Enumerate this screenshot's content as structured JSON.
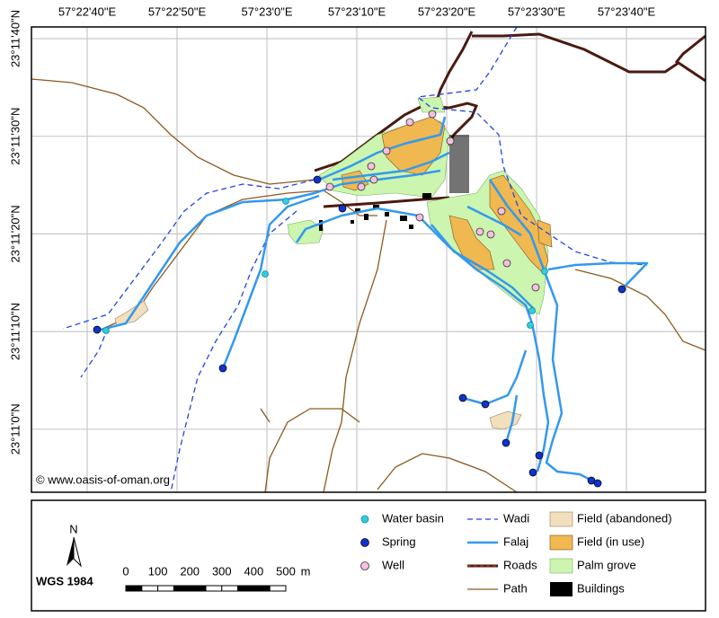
{
  "map": {
    "x_labels": [
      "57°22'40\"E",
      "57°22'50\"E",
      "57°23'0\"E",
      "57°23'10\"E",
      "57°23'20\"E",
      "57°23'30\"E",
      "57°23'40\"E"
    ],
    "y_labels": [
      "23°11'40\"N",
      "23°11'30\"N",
      "23°11'20\"N",
      "23°11'10\"N",
      "23°11'0\"N"
    ],
    "credit": "© www.oasis-of-oman.org",
    "north": "N",
    "datum": "WGS 1984",
    "scale": {
      "ticks": [
        0,
        100,
        200,
        300,
        400,
        500
      ],
      "unit": "m"
    },
    "legend": {
      "points": [
        "Water basin",
        "Spring",
        "Well"
      ],
      "lines": [
        "Wadi",
        "Falaj",
        "Roads",
        "Path"
      ],
      "areas": [
        "Field (abandoned)",
        "Field (in use)",
        "Palm grove",
        "Buildings"
      ]
    }
  }
}
